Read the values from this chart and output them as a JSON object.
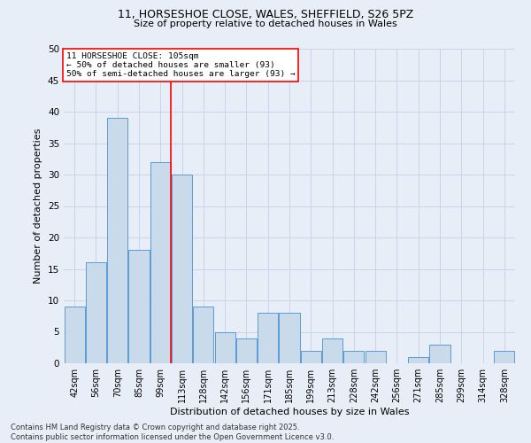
{
  "title_line1": "11, HORSESHOE CLOSE, WALES, SHEFFIELD, S26 5PZ",
  "title_line2": "Size of property relative to detached houses in Wales",
  "xlabel": "Distribution of detached houses by size in Wales",
  "ylabel": "Number of detached properties",
  "categories": [
    "42sqm",
    "56sqm",
    "70sqm",
    "85sqm",
    "99sqm",
    "113sqm",
    "128sqm",
    "142sqm",
    "156sqm",
    "171sqm",
    "185sqm",
    "199sqm",
    "213sqm",
    "228sqm",
    "242sqm",
    "256sqm",
    "271sqm",
    "285sqm",
    "299sqm",
    "314sqm",
    "328sqm"
  ],
  "values": [
    9,
    16,
    39,
    18,
    32,
    30,
    9,
    5,
    4,
    8,
    8,
    2,
    4,
    2,
    2,
    0,
    1,
    3,
    0,
    0,
    2
  ],
  "bar_color": "#c9daea",
  "bar_edge_color": "#5b9bd5",
  "grid_color": "#c8d4e8",
  "background_color": "#e8eef8",
  "red_line_index": 4.5,
  "annotation_text": "11 HORSESHOE CLOSE: 105sqm\n← 50% of detached houses are smaller (93)\n50% of semi-detached houses are larger (93) →",
  "annotation_box_color": "white",
  "annotation_box_edge": "red",
  "ylim": [
    0,
    50
  ],
  "yticks": [
    0,
    5,
    10,
    15,
    20,
    25,
    30,
    35,
    40,
    45,
    50
  ],
  "footnote_line1": "Contains HM Land Registry data © Crown copyright and database right 2025.",
  "footnote_line2": "Contains public sector information licensed under the Open Government Licence v3.0."
}
